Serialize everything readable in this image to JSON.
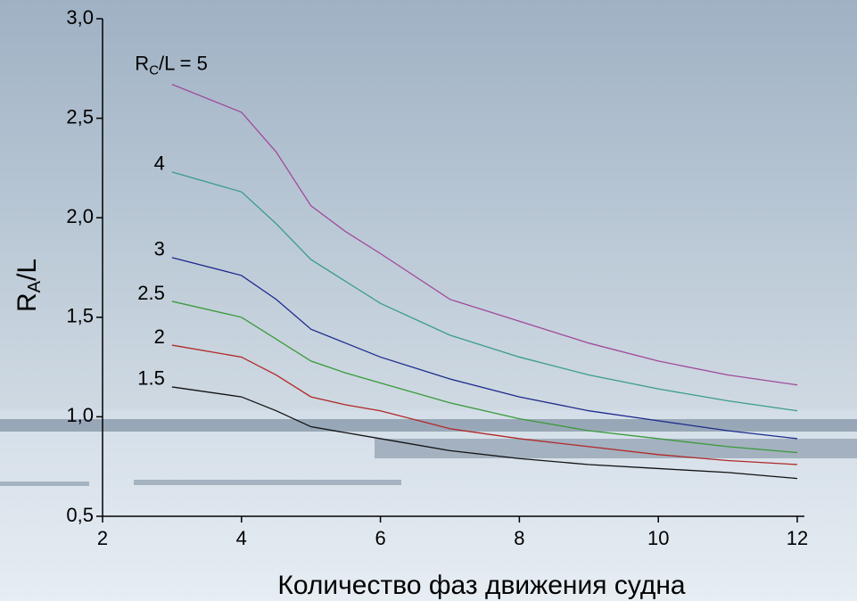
{
  "chart_data": {
    "type": "line",
    "x_label": "Количество фаз движения судна",
    "y_label": {
      "main": "R",
      "sub": "A",
      "rest": "/L"
    },
    "label_prefix": {
      "main": "R",
      "sub": "C",
      "rest": "/L = "
    },
    "x": [
      3,
      4,
      4.5,
      5,
      5.5,
      6,
      7,
      8,
      9,
      10,
      11,
      12
    ],
    "series": [
      {
        "name": "5",
        "color": "#a04a9c",
        "values": [
          2.67,
          2.53,
          2.33,
          2.06,
          1.93,
          1.82,
          1.59,
          1.48,
          1.37,
          1.28,
          1.21,
          1.16
        ]
      },
      {
        "name": "4",
        "color": "#3a9c8c",
        "values": [
          2.23,
          2.13,
          1.97,
          1.79,
          1.68,
          1.57,
          1.41,
          1.3,
          1.21,
          1.14,
          1.08,
          1.03
        ]
      },
      {
        "name": "3",
        "color": "#1c2a8c",
        "values": [
          1.8,
          1.71,
          1.59,
          1.44,
          1.37,
          1.3,
          1.19,
          1.1,
          1.03,
          0.98,
          0.93,
          0.89
        ]
      },
      {
        "name": "2.5",
        "color": "#3a9a3a",
        "values": [
          1.58,
          1.5,
          1.39,
          1.28,
          1.22,
          1.17,
          1.07,
          0.99,
          0.93,
          0.89,
          0.85,
          0.82
        ]
      },
      {
        "name": "2",
        "color": "#b02828",
        "values": [
          1.36,
          1.3,
          1.21,
          1.1,
          1.06,
          1.03,
          0.94,
          0.89,
          0.85,
          0.81,
          0.78,
          0.76
        ]
      },
      {
        "name": "1.5",
        "color": "#111111",
        "values": [
          1.15,
          1.1,
          1.03,
          0.95,
          0.92,
          0.89,
          0.83,
          0.79,
          0.76,
          0.74,
          0.72,
          0.69
        ]
      }
    ],
    "xlim": [
      2,
      12
    ],
    "ylim": [
      0.5,
      3.0
    ],
    "xticks": [
      2,
      4,
      6,
      8,
      10,
      12
    ],
    "yticks": [
      {
        "value": 0.5,
        "label": "0,5"
      },
      {
        "value": 1.0,
        "label": "1,0"
      },
      {
        "value": 1.5,
        "label": "1,5"
      },
      {
        "value": 2.0,
        "label": "2,0"
      },
      {
        "value": 2.5,
        "label": "2,5"
      },
      {
        "value": 3.0,
        "label": "3,0"
      }
    ],
    "grid": false
  }
}
